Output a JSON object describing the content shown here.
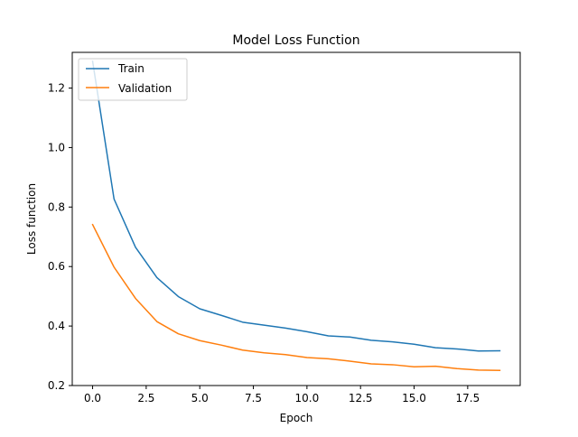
{
  "chart_data": {
    "type": "line",
    "title": "Model Loss Function",
    "xlabel": "Epoch",
    "ylabel": "Loss function",
    "x": [
      0,
      1,
      2,
      3,
      4,
      5,
      6,
      7,
      8,
      9,
      10,
      11,
      12,
      13,
      14,
      15,
      16,
      17,
      18,
      19
    ],
    "series": [
      {
        "name": "Train",
        "color": "#1f77b4",
        "values": [
          1.29,
          0.827,
          0.665,
          0.563,
          0.499,
          0.458,
          0.436,
          0.413,
          0.403,
          0.393,
          0.381,
          0.367,
          0.363,
          0.352,
          0.347,
          0.339,
          0.327,
          0.323,
          0.316,
          0.317
        ]
      },
      {
        "name": "Validation",
        "color": "#ff7f0e",
        "values": [
          0.741,
          0.598,
          0.493,
          0.415,
          0.374,
          0.351,
          0.336,
          0.319,
          0.31,
          0.304,
          0.294,
          0.29,
          0.282,
          0.273,
          0.27,
          0.263,
          0.265,
          0.257,
          0.252,
          0.251
        ]
      }
    ],
    "xlim": [
      -0.95,
      19.95
    ],
    "ylim": [
      0.2,
      1.32
    ],
    "xticks": [
      0.0,
      2.5,
      5.0,
      7.5,
      10.0,
      12.5,
      15.0,
      17.5
    ],
    "xtick_labels": [
      "0.0",
      "2.5",
      "5.0",
      "7.5",
      "10.0",
      "12.5",
      "15.0",
      "17.5"
    ],
    "yticks": [
      0.2,
      0.4,
      0.6,
      0.8,
      1.0,
      1.2
    ],
    "ytick_labels": [
      "0.2",
      "0.4",
      "0.6",
      "0.8",
      "1.0",
      "1.2"
    ],
    "grid": false,
    "legend_position": "top-left"
  }
}
